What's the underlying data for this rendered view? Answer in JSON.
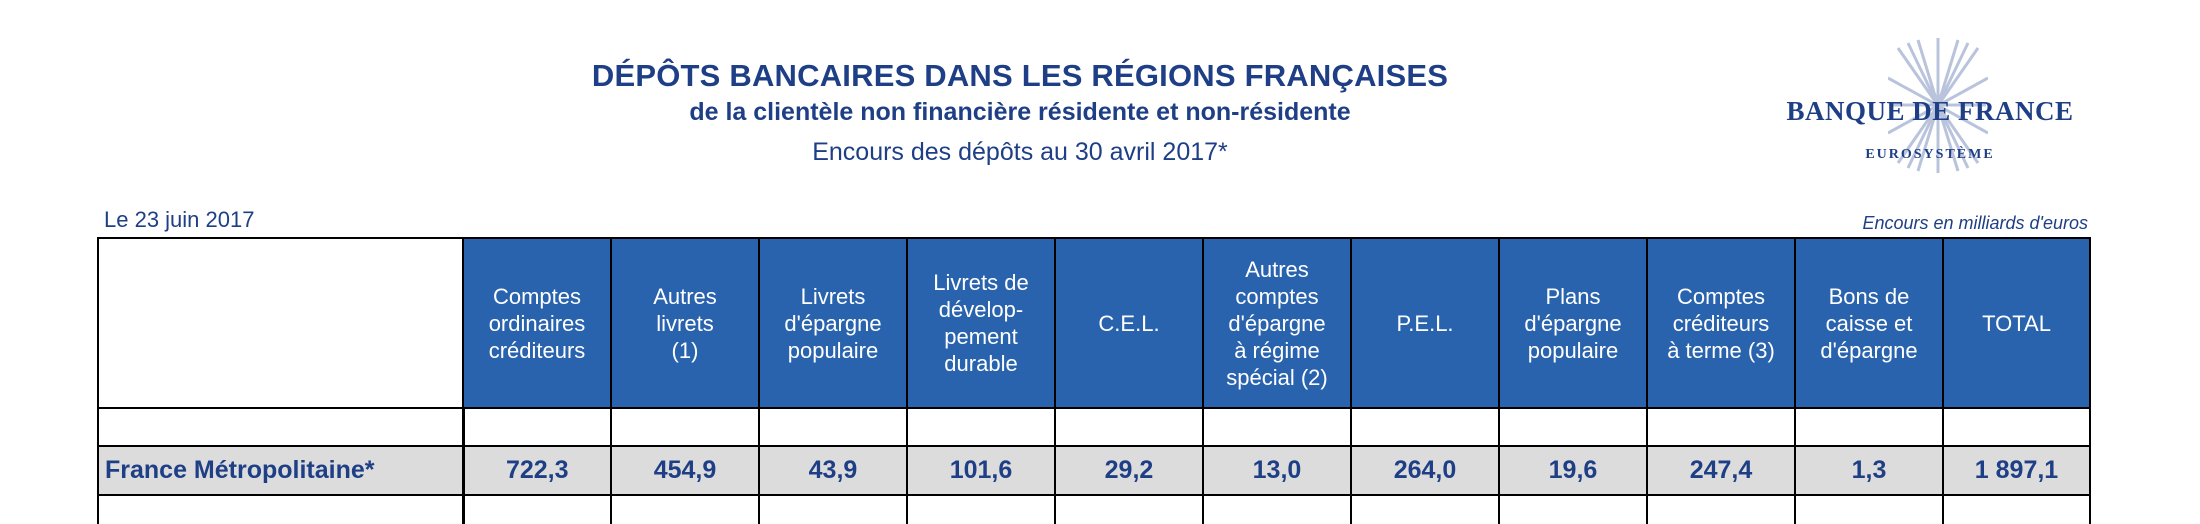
{
  "header": {
    "title": "DÉPÔTS BANCAIRES DANS LES RÉGIONS FRANÇAISES",
    "subtitle": "de la clientèle non financière résidente et non-résidente",
    "as_of": "Encours des dépôts au 30 avril 2017*"
  },
  "logo": {
    "name": "BANQUE DE FRANCE",
    "sub": "EUROSYSTÈME",
    "color": "#1e3f86"
  },
  "meta": {
    "date": "Le 23 juin 2017",
    "units": "Encours en milliards d'euros"
  },
  "table": {
    "header_color": "#2a63ad",
    "columns": [
      [
        "Comptes",
        "ordinaires",
        "créditeurs"
      ],
      [
        "Autres",
        "livrets",
        "(1)"
      ],
      [
        "Livrets",
        "d'épargne",
        "populaire"
      ],
      [
        "Livrets de",
        "dévelop-",
        "pement",
        "durable"
      ],
      [
        "C.E.L."
      ],
      [
        "Autres",
        "comptes",
        "d'épargne",
        "à régime",
        "spécial (2)"
      ],
      [
        "P.E.L."
      ],
      [
        "Plans",
        "d'épargne",
        "populaire"
      ],
      [
        "Comptes",
        "créditeurs",
        "à terme (3)"
      ],
      [
        "Bons de",
        "caisse et",
        "d'épargne"
      ],
      [
        "TOTAL"
      ]
    ],
    "rows": [
      {
        "label": "France Métropolitaine*",
        "values": [
          "722,3",
          "454,9",
          "43,9",
          "101,6",
          "29,2",
          "13,0",
          "264,0",
          "19,6",
          "247,4",
          "1,3",
          "1 897,1"
        ]
      }
    ]
  }
}
